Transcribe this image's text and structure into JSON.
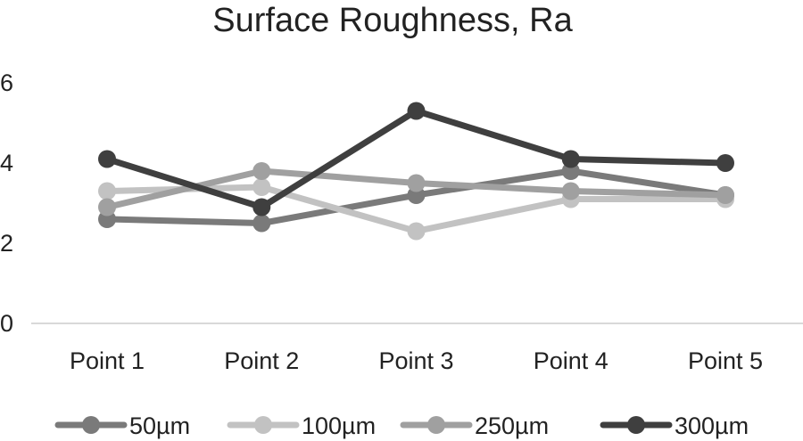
{
  "chart_data": {
    "type": "line",
    "title": "Surface Roughness, Ra",
    "xlabel": "",
    "ylabel": "",
    "categories": [
      "Point 1",
      "Point 2",
      "Point 3",
      "Point 4",
      "Point 5"
    ],
    "y_ticks": [
      "0",
      "2",
      "4",
      "6"
    ],
    "ylim": [
      0,
      6
    ],
    "grid": false,
    "legend_position": "bottom",
    "series": [
      {
        "name": "50µm",
        "color": "#7a7a7a",
        "values": [
          2.6,
          2.5,
          3.2,
          3.8,
          3.2
        ]
      },
      {
        "name": "100µm",
        "color": "#c2c2c2",
        "values": [
          3.3,
          3.4,
          2.3,
          3.1,
          3.1
        ]
      },
      {
        "name": "250µm",
        "color": "#a0a0a0",
        "values": [
          2.9,
          3.8,
          3.5,
          3.3,
          3.2
        ]
      },
      {
        "name": "300µm",
        "color": "#3f3f3f",
        "values": [
          4.1,
          2.9,
          5.3,
          4.1,
          4.0
        ]
      }
    ],
    "axis_color": "#d9d9d9"
  }
}
